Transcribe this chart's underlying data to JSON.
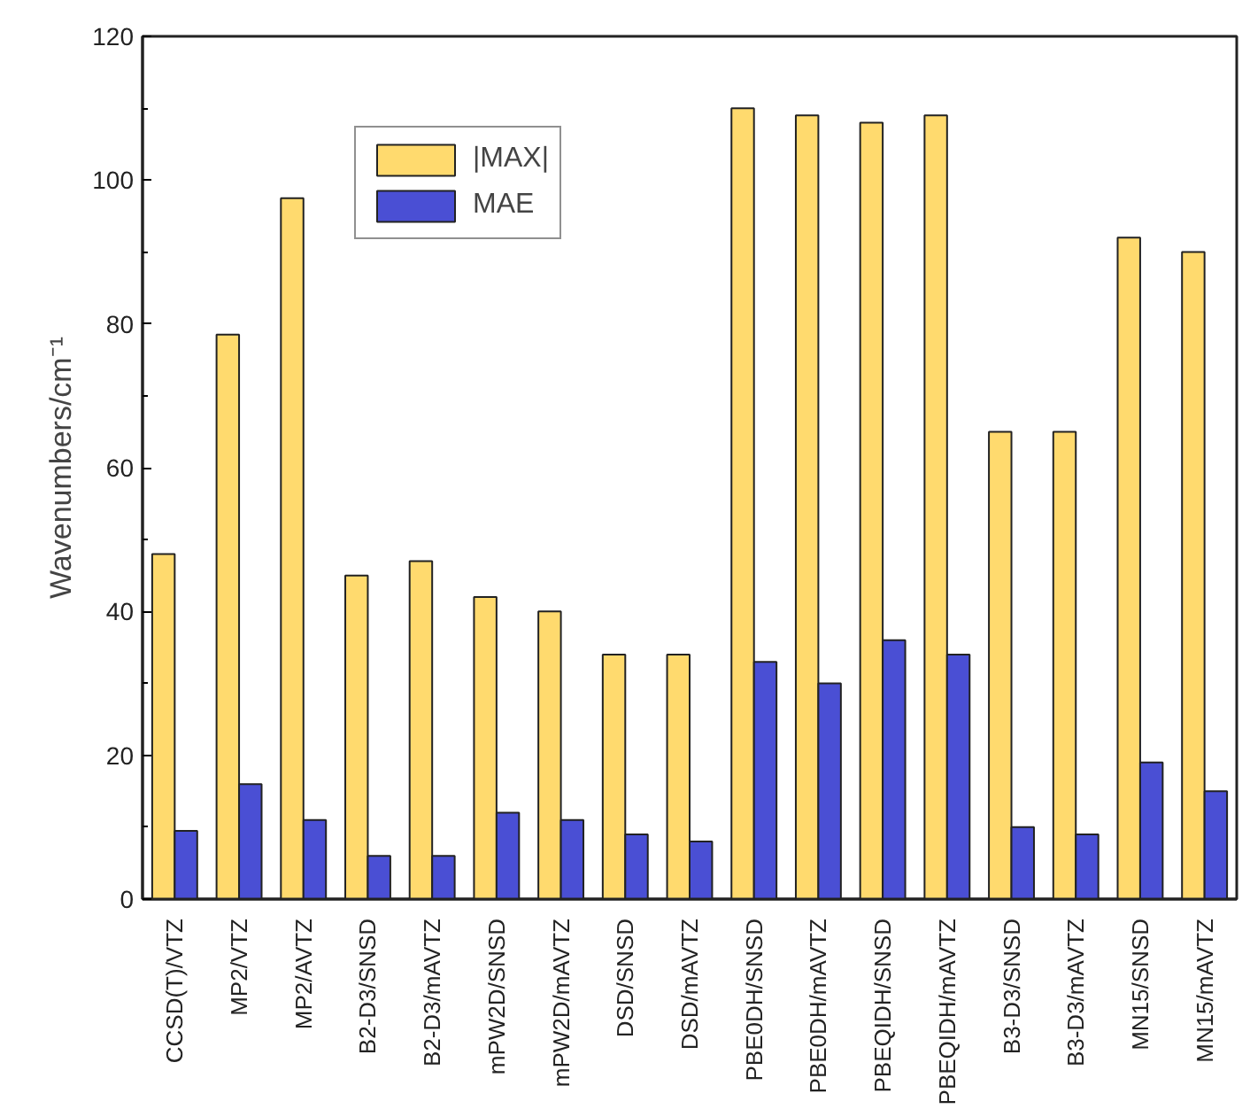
{
  "chart_data": {
    "type": "bar",
    "ylabel": "Wavenumbers/cm⁻¹",
    "categories": [
      "CCSD(T)/VTZ",
      "MP2/VTZ",
      "MP2/AVTZ",
      "B2-D3/SNSD",
      "B2-D3/mAVTZ",
      "mPW2D/SNSD",
      "mPW2D/mAVTZ",
      "DSD/SNSD",
      "DSD/mAVTZ",
      "PBE0DH/SNSD",
      "PBE0DH/mAVTZ",
      "PBEQIDH/SNSD",
      "PBEQIDH/mAVTZ",
      "B3-D3/SNSD",
      "B3-D3/mAVTZ",
      "MN15/SNSD",
      "MN15/mAVTZ"
    ],
    "series": [
      {
        "name": "|MAX|",
        "color": "#ffda6e",
        "values": [
          48,
          78.5,
          97.5,
          45,
          47,
          42,
          40,
          34,
          34,
          110,
          109,
          108,
          109,
          65,
          65,
          92,
          90
        ]
      },
      {
        "name": "MAE",
        "color": "#4a4fd4",
        "values": [
          9.5,
          16,
          11,
          6,
          6,
          12,
          11,
          9,
          8,
          33,
          30,
          36,
          34,
          10,
          9,
          19,
          15
        ]
      }
    ],
    "ylim": [
      0,
      120
    ],
    "yticks": [
      0,
      20,
      40,
      60,
      80,
      100,
      120
    ],
    "grid": false,
    "legend": "top left"
  }
}
